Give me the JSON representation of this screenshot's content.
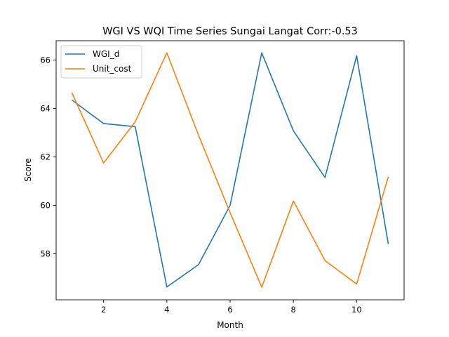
{
  "chart_data": {
    "type": "line",
    "title": "WGI VS WQI Time Series Sungai Langat Corr:-0.53",
    "xlabel": "Month",
    "ylabel": "Score",
    "x": [
      1,
      2,
      3,
      4,
      5,
      6,
      7,
      8,
      9,
      10,
      11
    ],
    "xlim": [
      0.5,
      11.5
    ],
    "ylim": [
      56.1,
      66.8
    ],
    "xticks": [
      "2",
      "4",
      "6",
      "8",
      "10"
    ],
    "yticks": [
      "58",
      "60",
      "62",
      "64",
      "66"
    ],
    "grid": false,
    "legend_position": "top-left",
    "series": [
      {
        "name": "WGI_d",
        "color": "#1f77b4",
        "values": [
          64.35,
          63.38,
          63.25,
          56.63,
          57.55,
          60.0,
          66.3,
          63.08,
          61.15,
          66.18,
          58.4
        ]
      },
      {
        "name": "Unit_cost",
        "color": "#ff7f0e",
        "values": [
          64.65,
          61.75,
          63.45,
          66.3,
          62.9,
          59.7,
          56.62,
          60.18,
          57.72,
          56.75,
          61.18
        ]
      }
    ]
  }
}
